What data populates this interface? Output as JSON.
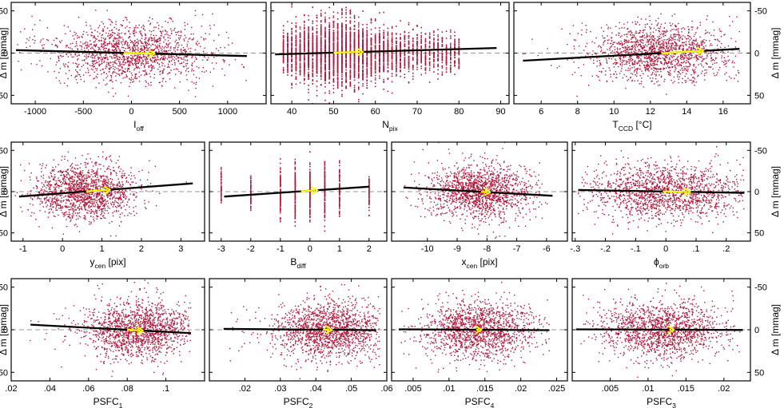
{
  "figure": {
    "ylabel": "Δ m [mmag]",
    "point_color": "#b0153a",
    "trend_color": "#000000",
    "arrow_color": "#ffff00",
    "zero_line_color": "#9a9a9a"
  },
  "chart_data": [
    {
      "type": "scatter",
      "row": 0,
      "col": 0,
      "x_main": "I",
      "x_sub": "off",
      "x_unit": "",
      "xlim": [
        -1250,
        1400
      ],
      "xticks": [
        -1000,
        -500,
        0,
        500,
        1000
      ],
      "ylim": [
        -60,
        60
      ],
      "yticks": [
        -50,
        0,
        50
      ],
      "cloud": {
        "center": 0,
        "spread": 420,
        "min": -1200,
        "max": 1200,
        "yspread": 17
      },
      "trend": {
        "x0": -1200,
        "y0": -3.5,
        "x1": 1200,
        "y1": 3.5
      },
      "arrow": {
        "x0": -80,
        "x1": 240
      },
      "left_axis": true,
      "right_axis": false
    },
    {
      "type": "scatter",
      "row": 0,
      "col": 1,
      "x_main": "N",
      "x_sub": "pix",
      "x_unit": "",
      "xlim": [
        35,
        92
      ],
      "xticks": [
        40,
        50,
        60,
        70,
        80,
        90
      ],
      "ylim": [
        -60,
        60
      ],
      "yticks": [
        -50,
        0,
        50
      ],
      "cloud": {
        "discrete": true,
        "values": [
          38,
          39,
          40,
          41,
          42,
          43,
          44,
          45,
          46,
          47,
          48,
          49,
          50,
          51,
          52,
          53,
          54,
          55,
          56,
          57,
          58,
          59,
          60,
          61,
          62,
          63,
          64,
          65,
          66,
          67,
          68,
          69,
          70,
          71,
          72,
          73,
          74,
          75,
          76,
          77,
          78,
          79,
          80
        ],
        "center": 51,
        "spread": 8,
        "yspread": 17
      },
      "trend": {
        "x0": 36,
        "y0": 1.5,
        "x1": 89,
        "y1": -6
      },
      "arrow": {
        "x0": 50,
        "x1": 57
      },
      "left_axis": false,
      "right_axis": false
    },
    {
      "type": "scatter",
      "row": 0,
      "col": 2,
      "x_main": "T",
      "x_sub": "CCD",
      "x_unit": " [°C]",
      "xlim": [
        4.5,
        17.5
      ],
      "xticks": [
        6,
        8,
        10,
        12,
        14,
        16
      ],
      "ylim": [
        -60,
        60
      ],
      "yticks": [
        -50,
        0,
        50
      ],
      "cloud": {
        "center": 12.5,
        "spread": 2.0,
        "min": 5,
        "max": 16.9,
        "yspread": 17
      },
      "trend": {
        "x0": 5,
        "y0": 9,
        "x1": 16.9,
        "y1": -5
      },
      "arrow": {
        "x0": 12.6,
        "x1": 14.9
      },
      "left_axis": false,
      "right_axis": true
    },
    {
      "type": "scatter",
      "row": 1,
      "col": 0,
      "x_main": "y",
      "x_sub": "cen",
      "x_unit": " [pix]",
      "xlim": [
        -1.3,
        3.6
      ],
      "xticks": [
        -1,
        0,
        1,
        2,
        3
      ],
      "ylim": [
        -60,
        60
      ],
      "yticks": [
        -50,
        0,
        50
      ],
      "cloud": {
        "center": 0.6,
        "spread": 0.65,
        "min": -1.2,
        "max": 3.4,
        "yspread": 17
      },
      "trend": {
        "x0": -1.1,
        "y0": 6,
        "x1": 3.3,
        "y1": -10
      },
      "arrow": {
        "x0": 0.6,
        "x1": 1.2
      },
      "left_axis": true,
      "right_axis": false
    },
    {
      "type": "scatter",
      "row": 1,
      "col": 1,
      "x_main": "B",
      "x_sub": "diff",
      "x_unit": "",
      "xlim": [
        -3.4,
        2.6
      ],
      "xticks": [
        -3,
        -2,
        -1,
        0,
        1,
        2
      ],
      "ylim": [
        -60,
        60
      ],
      "yticks": [
        -50,
        0,
        50
      ],
      "cloud": {
        "discrete": true,
        "values": [
          -3,
          -2,
          -1,
          -0.5,
          0,
          0.5,
          1,
          2
        ],
        "center": 0,
        "spread": 1.2,
        "yspread": 14
      },
      "trend": {
        "x0": -2.9,
        "y0": 6,
        "x1": 2,
        "y1": -6
      },
      "arrow": {
        "x0": -0.3,
        "x1": 0.25
      },
      "left_axis": false,
      "right_axis": false
    },
    {
      "type": "scatter",
      "row": 1,
      "col": 2,
      "x_main": "x",
      "x_sub": "cen",
      "x_unit": " [pix]",
      "xlim": [
        -11.2,
        -5.3
      ],
      "xticks": [
        -10,
        -9,
        -8,
        -7,
        -6
      ],
      "ylim": [
        -60,
        60
      ],
      "yticks": [
        -50,
        0,
        50
      ],
      "cloud": {
        "center": -8.2,
        "spread": 0.85,
        "min": -10.8,
        "max": -5.8,
        "yspread": 17
      },
      "trend": {
        "x0": -10.8,
        "y0": -5,
        "x1": -5.8,
        "y1": 5
      },
      "arrow": {
        "x0": -8.2,
        "x1": -7.9
      },
      "left_axis": false,
      "right_axis": false
    },
    {
      "type": "scatter",
      "row": 1,
      "col": 3,
      "x_main": "ϕ",
      "x_sub": "orb",
      "x_unit": "",
      "xlim": [
        -0.31,
        0.28
      ],
      "xticks": [
        -0.3,
        -0.2,
        -0.1,
        0,
        0.1,
        0.2
      ],
      "ylim": [
        -60,
        60
      ],
      "yticks": [
        -50,
        0,
        50
      ],
      "cloud": {
        "center": 0,
        "spread": 0.12,
        "min": -0.29,
        "max": 0.26,
        "yspread": 17
      },
      "trend": {
        "x0": -0.29,
        "y0": -2,
        "x1": 0.26,
        "y1": 1.5
      },
      "arrow": {
        "x0": -0.01,
        "x1": 0.08
      },
      "left_axis": false,
      "right_axis": true
    },
    {
      "type": "scatter",
      "row": 2,
      "col": 0,
      "x_main": "PSFC",
      "x_sub": "1",
      "x_unit": "",
      "xlim": [
        0.02,
        0.12
      ],
      "xticks": [
        0.02,
        0.04,
        0.06,
        0.08,
        0.1
      ],
      "ylim": [
        -60,
        60
      ],
      "yticks": [
        -50,
        0,
        50
      ],
      "cloud": {
        "center": 0.085,
        "spread": 0.014,
        "min": 0.028,
        "max": 0.113,
        "yspread": 17
      },
      "trend": {
        "x0": 0.03,
        "y0": -6,
        "x1": 0.113,
        "y1": 4
      },
      "arrow": {
        "x0": 0.08,
        "x1": 0.088
      },
      "left_axis": true,
      "right_axis": false
    },
    {
      "type": "scatter",
      "row": 2,
      "col": 1,
      "x_main": "PSFC",
      "x_sub": "2",
      "x_unit": "",
      "xlim": [
        0.01,
        0.06
      ],
      "xticks": [
        0.02,
        0.03,
        0.04,
        0.05,
        0.06
      ],
      "ylim": [
        -60,
        60
      ],
      "yticks": [
        -50,
        0,
        50
      ],
      "cloud": {
        "center": 0.044,
        "spread": 0.008,
        "min": 0.015,
        "max": 0.058,
        "yspread": 17
      },
      "trend": {
        "x0": 0.014,
        "y0": -1,
        "x1": 0.057,
        "y1": 0.5
      },
      "arrow": {
        "x0": 0.042,
        "x1": 0.0445
      },
      "left_axis": false,
      "right_axis": false
    },
    {
      "type": "scatter",
      "row": 2,
      "col": 2,
      "x_main": "PSFC",
      "x_sub": "4",
      "x_unit": "",
      "xlim": [
        0.002,
        0.0265
      ],
      "xticks": [
        0.005,
        0.01,
        0.015,
        0.02,
        0.025
      ],
      "ylim": [
        -60,
        60
      ],
      "yticks": [
        -50,
        0,
        50
      ],
      "cloud": {
        "center": 0.014,
        "spread": 0.004,
        "min": 0.003,
        "max": 0.024,
        "yspread": 17
      },
      "trend": {
        "x0": 0.003,
        "y0": -0.5,
        "x1": 0.024,
        "y1": 0.5
      },
      "arrow": {
        "x0": 0.0138,
        "x1": 0.0145
      },
      "left_axis": false,
      "right_axis": false
    },
    {
      "type": "scatter",
      "row": 2,
      "col": 3,
      "x_main": "PSFC",
      "x_sub": "3",
      "x_unit": "",
      "xlim": [
        0,
        0.0235
      ],
      "xticks": [
        0.005,
        0.01,
        0.015,
        0.02
      ],
      "ylim": [
        -60,
        60
      ],
      "yticks": [
        -50,
        0,
        50
      ],
      "cloud": {
        "center": 0.012,
        "spread": 0.0042,
        "min": 0.001,
        "max": 0.0225,
        "yspread": 17
      },
      "trend": {
        "x0": 0.0005,
        "y0": -0.5,
        "x1": 0.0225,
        "y1": 0.3
      },
      "arrow": {
        "x0": 0.0128,
        "x1": 0.0134
      },
      "left_axis": false,
      "right_axis": true
    }
  ]
}
